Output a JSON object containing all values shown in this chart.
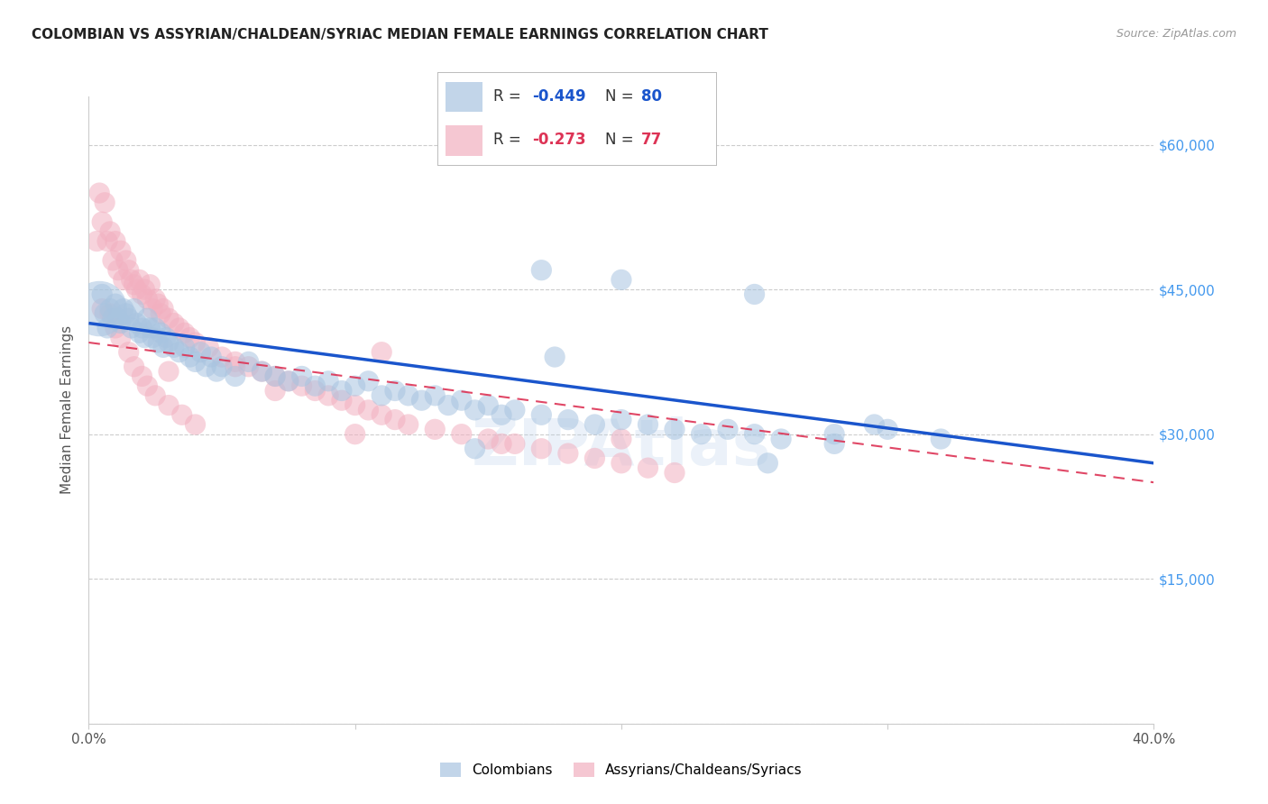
{
  "title": "COLOMBIAN VS ASSYRIAN/CHALDEAN/SYRIAC MEDIAN FEMALE EARNINGS CORRELATION CHART",
  "source": "Source: ZipAtlas.com",
  "ylabel": "Median Female Earnings",
  "yticks": [
    0,
    15000,
    30000,
    45000,
    60000
  ],
  "ytick_labels": [
    "",
    "$15,000",
    "$30,000",
    "$45,000",
    "$60,000"
  ],
  "xlim": [
    0.0,
    0.4
  ],
  "ylim": [
    0,
    65000
  ],
  "blue_R": -0.449,
  "blue_N": 80,
  "pink_R": -0.273,
  "pink_N": 77,
  "blue_color": "#a8c4e0",
  "pink_color": "#f2b0c0",
  "blue_line_color": "#1a55cc",
  "pink_line_color": "#dd3355",
  "legend_label_blue": "Colombians",
  "legend_label_pink": "Assyrians/Chaldeans/Syriacs",
  "watermark": "ZIPAtlas",
  "title_color": "#222222",
  "ylabel_color": "#555555",
  "ytick_color": "#4499ee",
  "xtick_color": "#555555",
  "grid_color": "#cccccc",
  "bg_color": "#ffffff",
  "blue_x": [
    0.004,
    0.005,
    0.006,
    0.007,
    0.008,
    0.009,
    0.01,
    0.011,
    0.012,
    0.013,
    0.014,
    0.015,
    0.016,
    0.017,
    0.018,
    0.019,
    0.02,
    0.021,
    0.022,
    0.023,
    0.024,
    0.025,
    0.026,
    0.027,
    0.028,
    0.029,
    0.03,
    0.032,
    0.034,
    0.036,
    0.038,
    0.04,
    0.042,
    0.044,
    0.046,
    0.048,
    0.05,
    0.055,
    0.06,
    0.065,
    0.07,
    0.075,
    0.08,
    0.085,
    0.09,
    0.095,
    0.1,
    0.105,
    0.11,
    0.115,
    0.12,
    0.125,
    0.13,
    0.135,
    0.14,
    0.145,
    0.15,
    0.155,
    0.16,
    0.17,
    0.18,
    0.19,
    0.2,
    0.21,
    0.22,
    0.23,
    0.24,
    0.25,
    0.26,
    0.28,
    0.3,
    0.32,
    0.17,
    0.2,
    0.25,
    0.175,
    0.145,
    0.28,
    0.295,
    0.255
  ],
  "blue_y": [
    43000,
    44500,
    42500,
    41000,
    43000,
    42000,
    43500,
    42000,
    41500,
    43000,
    42500,
    42000,
    41000,
    43000,
    41500,
    40500,
    41000,
    40000,
    42000,
    41000,
    40000,
    41000,
    39500,
    40500,
    39000,
    40000,
    39500,
    39000,
    38500,
    39000,
    38000,
    37500,
    38500,
    37000,
    38000,
    36500,
    37000,
    36000,
    37500,
    36500,
    36000,
    35500,
    36000,
    35000,
    35500,
    34500,
    35000,
    35500,
    34000,
    34500,
    34000,
    33500,
    34000,
    33000,
    33500,
    32500,
    33000,
    32000,
    32500,
    32000,
    31500,
    31000,
    31500,
    31000,
    30500,
    30000,
    30500,
    30000,
    29500,
    29000,
    30500,
    29500,
    47000,
    46000,
    44500,
    38000,
    28500,
    30000,
    31000,
    27000
  ],
  "blue_s": [
    700,
    100,
    100,
    100,
    100,
    100,
    100,
    100,
    100,
    100,
    100,
    100,
    100,
    100,
    100,
    100,
    100,
    100,
    100,
    100,
    100,
    100,
    100,
    100,
    100,
    100,
    100,
    100,
    100,
    100,
    100,
    100,
    100,
    100,
    100,
    100,
    100,
    100,
    100,
    100,
    100,
    100,
    100,
    100,
    100,
    100,
    100,
    100,
    100,
    100,
    100,
    100,
    100,
    100,
    100,
    100,
    100,
    100,
    100,
    100,
    100,
    100,
    100,
    100,
    100,
    100,
    100,
    100,
    100,
    100,
    100,
    100,
    100,
    100,
    100,
    100,
    100,
    100,
    100,
    100
  ],
  "pink_x": [
    0.003,
    0.004,
    0.005,
    0.006,
    0.007,
    0.008,
    0.009,
    0.01,
    0.011,
    0.012,
    0.013,
    0.014,
    0.015,
    0.016,
    0.017,
    0.018,
    0.019,
    0.02,
    0.021,
    0.022,
    0.023,
    0.024,
    0.025,
    0.026,
    0.027,
    0.028,
    0.03,
    0.032,
    0.034,
    0.036,
    0.038,
    0.04,
    0.045,
    0.05,
    0.055,
    0.06,
    0.065,
    0.07,
    0.075,
    0.08,
    0.085,
    0.09,
    0.095,
    0.1,
    0.105,
    0.11,
    0.115,
    0.12,
    0.13,
    0.14,
    0.15,
    0.16,
    0.17,
    0.18,
    0.19,
    0.2,
    0.21,
    0.22,
    0.005,
    0.008,
    0.01,
    0.012,
    0.015,
    0.017,
    0.02,
    0.022,
    0.025,
    0.03,
    0.035,
    0.055,
    0.07,
    0.1,
    0.155,
    0.11,
    0.2,
    0.03,
    0.04
  ],
  "pink_y": [
    50000,
    55000,
    52000,
    54000,
    50000,
    51000,
    48000,
    50000,
    47000,
    49000,
    46000,
    48000,
    47000,
    46000,
    45500,
    45000,
    46000,
    44500,
    45000,
    44000,
    45500,
    43000,
    44000,
    43500,
    42500,
    43000,
    42000,
    41500,
    41000,
    40500,
    40000,
    39500,
    39000,
    38000,
    37500,
    37000,
    36500,
    36000,
    35500,
    35000,
    34500,
    34000,
    33500,
    33000,
    32500,
    32000,
    31500,
    31000,
    30500,
    30000,
    29500,
    29000,
    28500,
    28000,
    27500,
    27000,
    26500,
    26000,
    43000,
    42500,
    41000,
    40000,
    38500,
    37000,
    36000,
    35000,
    34000,
    33000,
    32000,
    37000,
    34500,
    30000,
    29000,
    38500,
    29500,
    36500,
    31000
  ],
  "pink_s": [
    100,
    100,
    100,
    100,
    100,
    100,
    100,
    100,
    100,
    100,
    100,
    100,
    100,
    100,
    100,
    100,
    100,
    100,
    100,
    100,
    100,
    100,
    100,
    100,
    100,
    100,
    100,
    100,
    100,
    100,
    100,
    100,
    100,
    100,
    100,
    100,
    100,
    100,
    100,
    100,
    100,
    100,
    100,
    100,
    100,
    100,
    100,
    100,
    100,
    100,
    100,
    100,
    100,
    100,
    100,
    100,
    100,
    100,
    100,
    100,
    100,
    100,
    100,
    100,
    100,
    100,
    100,
    100,
    100,
    100,
    100,
    100,
    100,
    100,
    100,
    100,
    100
  ],
  "blue_line_x0": 0.0,
  "blue_line_x1": 0.4,
  "blue_line_y0": 41500,
  "blue_line_y1": 27000,
  "pink_line_x0": 0.0,
  "pink_line_x1": 0.4,
  "pink_line_y0": 39500,
  "pink_line_y1": 25000
}
